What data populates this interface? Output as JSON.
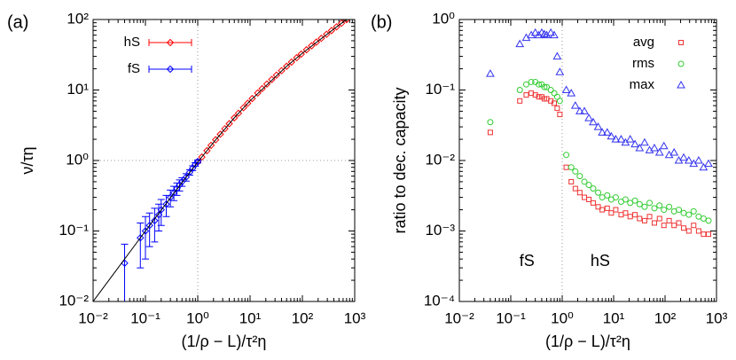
{
  "chart_data": [
    {
      "type": "scatter",
      "panel_label": "(a)",
      "x_label": "(1/ρ − L)/τ²η",
      "y_label": "ν/τη",
      "log_x": true,
      "log_y": true,
      "legend": "upper left",
      "xlim": [
        0.01,
        1000
      ],
      "ylim": [
        0.01,
        100
      ],
      "xticks": [
        {
          "value": 0.01,
          "label": "10⁻²"
        },
        {
          "value": 0.1,
          "label": "10⁻¹"
        },
        {
          "value": 1,
          "label": "10⁰"
        },
        {
          "value": 10,
          "label": "10¹"
        },
        {
          "value": 100,
          "label": "10²"
        },
        {
          "value": 1000,
          "label": "10³"
        }
      ],
      "yticks": [
        {
          "value": 0.01,
          "label": "10⁻²"
        },
        {
          "value": 0.1,
          "label": "10⁻¹"
        },
        {
          "value": 1,
          "label": "10⁰"
        },
        {
          "value": 10,
          "label": "10¹"
        },
        {
          "value": 100,
          "label": "10²"
        }
      ],
      "vlines": [
        1
      ],
      "hlines": [
        1
      ],
      "series": [
        {
          "name": "hS",
          "color": "#ff0000",
          "marker": "diamond",
          "x": [
            1.0,
            1.2,
            1.5,
            1.8,
            2.2,
            2.7,
            3.3,
            4,
            5,
            6,
            7.5,
            9,
            11,
            14,
            17,
            21,
            26,
            32,
            40,
            50,
            62,
            78,
            95,
            120,
            150,
            185,
            230,
            290,
            360,
            450,
            560,
            700
          ],
          "values": [
            0.95,
            1.12,
            1.38,
            1.64,
            1.97,
            2.36,
            2.82,
            3.33,
            4.03,
            4.68,
            5.61,
            6.48,
            7.57,
            9.07,
            10.45,
            12.15,
            14.09,
            16.22,
            18.8,
            21.7,
            24.9,
            28.7,
            32.3,
            37.2,
            42.4,
            47.8,
            54.1,
            61.7,
            69.6,
            78.7,
            88.6,
            100
          ]
        },
        {
          "name": "fS",
          "color": "#0000ff",
          "marker": "diamond",
          "x": [
            0.04,
            0.08,
            0.1,
            0.12,
            0.15,
            0.18,
            0.2,
            0.25,
            0.3,
            0.35,
            0.4,
            0.45,
            0.5,
            0.6,
            0.7,
            0.8,
            0.9,
            1.0
          ],
          "values": [
            0.035,
            0.08,
            0.1,
            0.12,
            0.14,
            0.17,
            0.2,
            0.24,
            0.3,
            0.35,
            0.4,
            0.45,
            0.5,
            0.58,
            0.68,
            0.78,
            0.88,
            0.97
          ],
          "errors": [
            0.03,
            0.05,
            0.06,
            0.06,
            0.07,
            0.07,
            0.08,
            0.08,
            0.08,
            0.08,
            0.08,
            0.08,
            0.07,
            0.07,
            0.06,
            0.06,
            0.05,
            0.05
          ]
        },
        {
          "color": "#000000",
          "marker": "line",
          "x": [
            0.01,
            0.1,
            0.5,
            1,
            2,
            5,
            10,
            50,
            100,
            500,
            800
          ],
          "values": [
            0.01,
            0.1,
            0.486,
            0.947,
            1.8,
            4.03,
            7.03,
            21.7,
            33.3,
            83.3,
            107.4
          ]
        }
      ]
    },
    {
      "type": "scatter",
      "panel_label": "(b)",
      "x_label": "(1/ρ − L)/τ²η",
      "y_label": "ratio to dec. capacity",
      "log_x": true,
      "log_y": true,
      "legend": "upper right",
      "xlim": [
        0.01,
        1000
      ],
      "ylim": [
        0.0001,
        1
      ],
      "xticks": [
        {
          "value": 0.01,
          "label": "10⁻²"
        },
        {
          "value": 0.1,
          "label": "10⁻¹"
        },
        {
          "value": 1,
          "label": "10⁰"
        },
        {
          "value": 10,
          "label": "10¹"
        },
        {
          "value": 100,
          "label": "10²"
        },
        {
          "value": 1000,
          "label": "10³"
        }
      ],
      "yticks": [
        {
          "value": 0.0001,
          "label": "10⁻⁴"
        },
        {
          "value": 0.001,
          "label": "10⁻³"
        },
        {
          "value": 0.01,
          "label": "10⁻²"
        },
        {
          "value": 0.1,
          "label": "10⁻¹"
        },
        {
          "value": 1,
          "label": "10⁰"
        }
      ],
      "vlines": [
        1
      ],
      "annotations": [
        "fS",
        "hS"
      ],
      "series": [
        {
          "name": "avg",
          "color": "#ee3333",
          "marker": "square",
          "x": [
            0.04,
            0.15,
            0.2,
            0.25,
            0.3,
            0.35,
            0.4,
            0.45,
            0.5,
            0.6,
            0.7,
            0.8,
            0.9,
            1.2,
            1.5,
            1.8,
            2.2,
            2.7,
            3.3,
            4,
            5,
            6,
            7.5,
            9,
            11,
            14,
            17,
            21,
            26,
            32,
            40,
            50,
            62,
            78,
            95,
            120,
            150,
            185,
            230,
            290,
            360,
            450,
            560,
            700
          ],
          "values": [
            0.025,
            0.07,
            0.085,
            0.09,
            0.085,
            0.08,
            0.08,
            0.075,
            0.075,
            0.07,
            0.065,
            0.055,
            0.045,
            0.008,
            0.005,
            0.004,
            0.0035,
            0.003,
            0.0028,
            0.0025,
            0.0022,
            0.002,
            0.0021,
            0.0018,
            0.002,
            0.0017,
            0.0018,
            0.0016,
            0.0017,
            0.0015,
            0.0014,
            0.0016,
            0.0013,
            0.0015,
            0.0012,
            0.0014,
            0.0012,
            0.0013,
            0.0011,
            0.001,
            0.0012,
            0.001,
            0.0009,
            0.0009
          ]
        },
        {
          "name": "rms",
          "color": "#33cc33",
          "marker": "circle",
          "x": [
            0.04,
            0.15,
            0.2,
            0.25,
            0.3,
            0.35,
            0.4,
            0.45,
            0.5,
            0.6,
            0.7,
            0.8,
            0.9,
            1.2,
            1.5,
            1.8,
            2.2,
            2.7,
            3.3,
            4,
            5,
            6,
            7.5,
            9,
            11,
            14,
            17,
            21,
            26,
            32,
            40,
            50,
            62,
            78,
            95,
            120,
            150,
            185,
            230,
            290,
            360,
            450,
            560,
            700
          ],
          "values": [
            0.035,
            0.1,
            0.12,
            0.13,
            0.13,
            0.12,
            0.12,
            0.11,
            0.11,
            0.1,
            0.09,
            0.08,
            0.07,
            0.012,
            0.008,
            0.007,
            0.006,
            0.005,
            0.0045,
            0.004,
            0.0035,
            0.003,
            0.0032,
            0.0028,
            0.003,
            0.0026,
            0.0028,
            0.0025,
            0.0027,
            0.0024,
            0.0022,
            0.0025,
            0.0021,
            0.0023,
            0.002,
            0.0022,
            0.0019,
            0.002,
            0.0018,
            0.0017,
            0.0019,
            0.0016,
            0.0015,
            0.0014
          ]
        },
        {
          "name": "max",
          "color": "#3333ee",
          "marker": "triangle",
          "x": [
            0.04,
            0.15,
            0.2,
            0.25,
            0.3,
            0.35,
            0.4,
            0.45,
            0.5,
            0.6,
            0.7,
            0.8,
            0.9,
            1.2,
            1.5,
            1.8,
            2.2,
            2.7,
            3.3,
            4,
            5,
            6,
            7.5,
            9,
            11,
            14,
            17,
            21,
            26,
            32,
            40,
            50,
            62,
            78,
            95,
            120,
            150,
            185,
            230,
            290,
            360,
            450,
            560,
            700
          ],
          "values": [
            0.17,
            0.45,
            0.55,
            0.6,
            0.65,
            0.6,
            0.65,
            0.62,
            0.6,
            0.65,
            0.6,
            0.3,
            0.18,
            0.1,
            0.09,
            0.06,
            0.05,
            0.05,
            0.04,
            0.035,
            0.03,
            0.025,
            0.025,
            0.022,
            0.02,
            0.02,
            0.018,
            0.02,
            0.017,
            0.015,
            0.018,
            0.014,
            0.015,
            0.013,
            0.016,
            0.012,
            0.013,
            0.01,
            0.011,
            0.01,
            0.009,
            0.01,
            0.008,
            0.009
          ]
        }
      ]
    }
  ]
}
